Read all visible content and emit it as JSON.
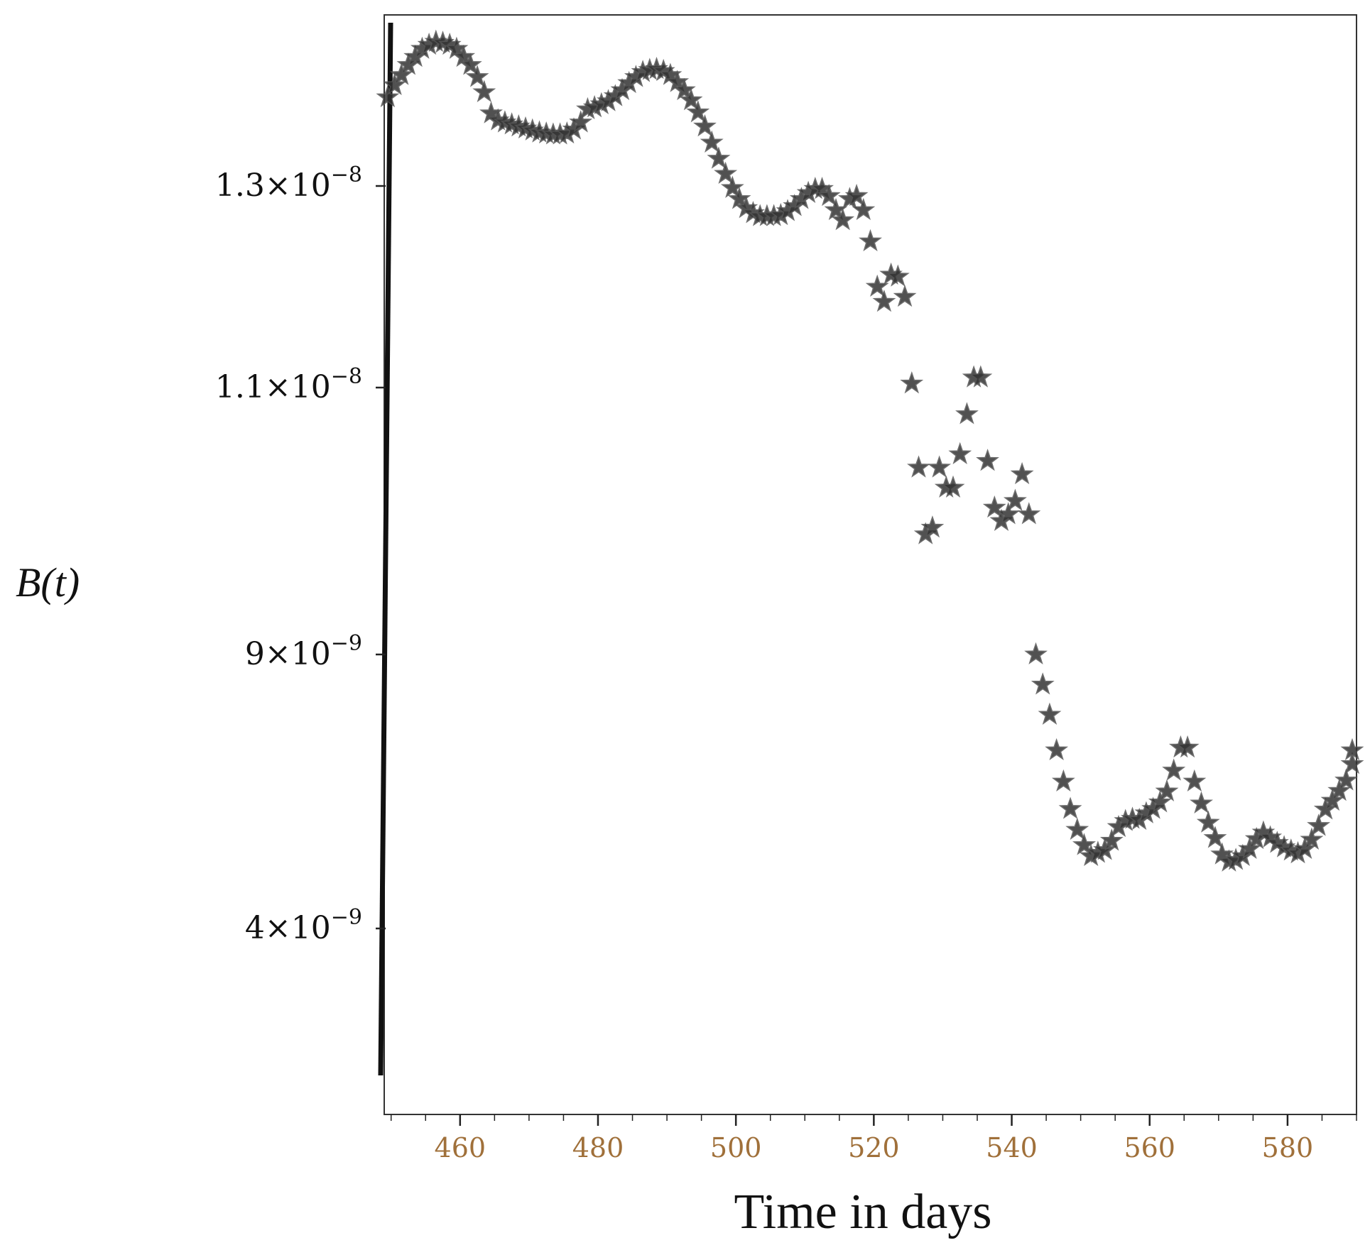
{
  "chart_data": {
    "type": "scatter",
    "title": "",
    "xlabel": "Time in days",
    "ylabel": "B(t)",
    "marker": "star",
    "marker_color": "#333333",
    "grid": false,
    "legend": "none",
    "xlim": [
      449,
      590
    ],
    "x_ticks": [
      {
        "value": 460,
        "label": "460"
      },
      {
        "value": 480,
        "label": "480"
      },
      {
        "value": 500,
        "label": "500"
      },
      {
        "value": 520,
        "label": "520"
      },
      {
        "value": 540,
        "label": "540"
      },
      {
        "value": 560,
        "label": "560"
      },
      {
        "value": 580,
        "label": "580"
      }
    ],
    "y_ticks": [
      {
        "label": "1.3×10",
        "exp": "−8"
      },
      {
        "label": "1.1×10",
        "exp": "−8"
      },
      {
        "label": "9×10",
        "exp": "−9"
      },
      {
        "label": "4×10",
        "exp": "−9"
      }
    ],
    "y_tick_values": [
      1.3e-08,
      1.1e-08,
      9e-09,
      4e-09
    ],
    "points": [
      [
        449.5,
        1.388e-08
      ],
      [
        450.5,
        1.4e-08
      ],
      [
        451.5,
        1.41e-08
      ],
      [
        452.5,
        1.42e-08
      ],
      [
        453.5,
        1.428e-08
      ],
      [
        454.5,
        1.436e-08
      ],
      [
        455.5,
        1.44e-08
      ],
      [
        456.5,
        1.443e-08
      ],
      [
        457.5,
        1.442e-08
      ],
      [
        458.5,
        1.44e-08
      ],
      [
        459.5,
        1.436e-08
      ],
      [
        460.5,
        1.428e-08
      ],
      [
        461.5,
        1.42e-08
      ],
      [
        462.5,
        1.408e-08
      ],
      [
        463.5,
        1.393e-08
      ],
      [
        464.5,
        1.372e-08
      ],
      [
        465.5,
        1.365e-08
      ],
      [
        466.5,
        1.363e-08
      ],
      [
        467.5,
        1.361e-08
      ],
      [
        468.5,
        1.359e-08
      ],
      [
        469.5,
        1.357e-08
      ],
      [
        470.5,
        1.355e-08
      ],
      [
        471.5,
        1.353e-08
      ],
      [
        472.5,
        1.352e-08
      ],
      [
        473.5,
        1.351e-08
      ],
      [
        474.5,
        1.351e-08
      ],
      [
        475.5,
        1.352e-08
      ],
      [
        476.5,
        1.356e-08
      ],
      [
        477.5,
        1.363e-08
      ],
      [
        478.5,
        1.376e-08
      ],
      [
        479.5,
        1.378e-08
      ],
      [
        480.5,
        1.381e-08
      ],
      [
        481.5,
        1.384e-08
      ],
      [
        482.5,
        1.389e-08
      ],
      [
        483.5,
        1.395e-08
      ],
      [
        484.5,
        1.402e-08
      ],
      [
        485.5,
        1.408e-08
      ],
      [
        486.5,
        1.413e-08
      ],
      [
        487.5,
        1.415e-08
      ],
      [
        488.5,
        1.416e-08
      ],
      [
        489.5,
        1.414e-08
      ],
      [
        490.5,
        1.41e-08
      ],
      [
        491.5,
        1.403e-08
      ],
      [
        492.5,
        1.395e-08
      ],
      [
        493.5,
        1.385e-08
      ],
      [
        494.5,
        1.373e-08
      ],
      [
        495.5,
        1.359e-08
      ],
      [
        496.5,
        1.343e-08
      ],
      [
        497.5,
        1.327e-08
      ],
      [
        498.5,
        1.312e-08
      ],
      [
        499.5,
        1.298e-08
      ],
      [
        500.5,
        1.287e-08
      ],
      [
        501.5,
        1.278e-08
      ],
      [
        502.5,
        1.273e-08
      ],
      [
        503.5,
        1.27e-08
      ],
      [
        504.5,
        1.27e-08
      ],
      [
        505.5,
        1.27e-08
      ],
      [
        506.5,
        1.271e-08
      ],
      [
        507.5,
        1.275e-08
      ],
      [
        508.5,
        1.28e-08
      ],
      [
        509.5,
        1.287e-08
      ],
      [
        510.5,
        1.293e-08
      ],
      [
        511.5,
        1.297e-08
      ],
      [
        512.5,
        1.297e-08
      ],
      [
        513.5,
        1.29e-08
      ],
      [
        514.5,
        1.276e-08
      ],
      [
        515.5,
        1.266e-08
      ],
      [
        516.5,
        1.287e-08
      ],
      [
        517.5,
        1.29e-08
      ],
      [
        518.5,
        1.276e-08
      ],
      [
        519.5,
        1.245e-08
      ],
      [
        520.5,
        1.2e-08
      ],
      [
        521.5,
        1.185e-08
      ],
      [
        522.5,
        1.212e-08
      ],
      [
        523.5,
        1.21e-08
      ],
      [
        524.5,
        1.19e-08
      ],
      [
        525.5,
        1.104e-08
      ],
      [
        526.5,
        1.04e-08
      ],
      [
        527.5,
        9.9e-09
      ],
      [
        528.5,
        9.95e-09
      ],
      [
        529.5,
        1.04e-08
      ],
      [
        530.5,
        1.025e-08
      ],
      [
        531.5,
        1.025e-08
      ],
      [
        532.5,
        1.05e-08
      ],
      [
        533.5,
        1.08e-08
      ],
      [
        534.5,
        1.11e-08
      ],
      [
        535.5,
        1.11e-08
      ],
      [
        536.5,
        1.045e-08
      ],
      [
        537.5,
        1.01e-08
      ],
      [
        538.5,
        1e-08
      ],
      [
        539.5,
        1.005e-08
      ],
      [
        540.5,
        1.015e-08
      ],
      [
        541.5,
        1.035e-08
      ],
      [
        542.5,
        1.005e-08
      ],
      [
        543.5,
        9e-09
      ],
      [
        544.5,
        8.45e-09
      ],
      [
        545.5,
        7.9e-09
      ],
      [
        546.5,
        7.25e-09
      ],
      [
        547.5,
        6.68e-09
      ],
      [
        548.5,
        6.18e-09
      ],
      [
        549.5,
        5.8e-09
      ],
      [
        550.5,
        5.52e-09
      ],
      [
        551.5,
        5.32e-09
      ],
      [
        552.5,
        5.38e-09
      ],
      [
        553.5,
        5.43e-09
      ],
      [
        554.5,
        5.6e-09
      ],
      [
        555.5,
        5.85e-09
      ],
      [
        556.5,
        5.96e-09
      ],
      [
        557.5,
        6e-09
      ],
      [
        558.5,
        5.98e-09
      ],
      [
        559.5,
        6.1e-09
      ],
      [
        560.5,
        6.18e-09
      ],
      [
        561.5,
        6.3e-09
      ],
      [
        562.5,
        6.5e-09
      ],
      [
        563.5,
        6.88e-09
      ],
      [
        564.5,
        7.3e-09
      ],
      [
        565.5,
        7.3e-09
      ],
      [
        566.5,
        6.68e-09
      ],
      [
        567.5,
        6.28e-09
      ],
      [
        568.5,
        5.93e-09
      ],
      [
        569.5,
        5.65e-09
      ],
      [
        570.5,
        5.35e-09
      ],
      [
        571.5,
        5.22e-09
      ],
      [
        572.5,
        5.25e-09
      ],
      [
        573.5,
        5.32e-09
      ],
      [
        574.5,
        5.45e-09
      ],
      [
        575.5,
        5.63e-09
      ],
      [
        576.5,
        5.75e-09
      ],
      [
        577.5,
        5.66e-09
      ],
      [
        578.5,
        5.56e-09
      ],
      [
        579.5,
        5.48e-09
      ],
      [
        580.5,
        5.42e-09
      ],
      [
        581.5,
        5.37e-09
      ],
      [
        582.5,
        5.45e-09
      ],
      [
        583.5,
        5.62e-09
      ],
      [
        584.5,
        5.87e-09
      ],
      [
        585.5,
        6.17e-09
      ],
      [
        586.5,
        6.33e-09
      ],
      [
        587.5,
        6.51e-09
      ],
      [
        588.5,
        6.7e-09
      ],
      [
        589.5,
        7e-09
      ],
      [
        590.0,
        7.25e-09
      ]
    ]
  }
}
